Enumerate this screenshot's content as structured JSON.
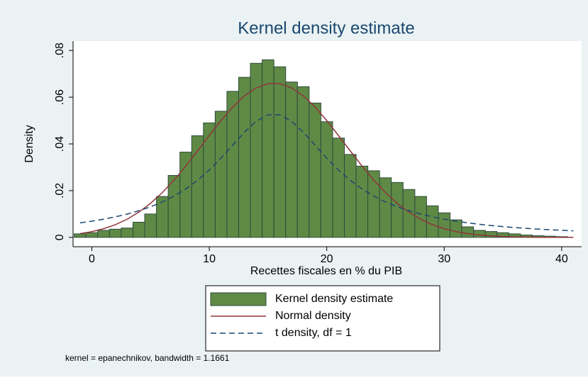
{
  "chart_data": {
    "type": "histogram",
    "title": "Kernel density estimate",
    "xlabel": "Recettes fiscales en % du PIB",
    "ylabel": "Density",
    "note": "kernel = epanechnikov, bandwidth = 1.1661",
    "bins": [
      -1.5,
      -0.5,
      0.5,
      1.5,
      2.5,
      3.5,
      4.5,
      5.5,
      6.5,
      7.5,
      8.5,
      9.5,
      10.5,
      11.5,
      12.5,
      13.5,
      14.5,
      15.5,
      16.5,
      17.5,
      18.5,
      19.5,
      20.5,
      21.5,
      22.5,
      23.5,
      24.5,
      25.5,
      26.5,
      27.5,
      28.5,
      29.5,
      30.5,
      31.5,
      32.5,
      33.5,
      34.5,
      35.5,
      36.5,
      37.5,
      38.5,
      39.5,
      40.5
    ],
    "series": [
      {
        "name": "Kernel density estimate",
        "color": "#5f8a46",
        "edge": "#2f4a3a",
        "values": [
          0.0015,
          0.002,
          0.003,
          0.0035,
          0.004,
          0.0065,
          0.01,
          0.0175,
          0.0265,
          0.0365,
          0.0435,
          0.049,
          0.054,
          0.0625,
          0.0685,
          0.0745,
          0.076,
          0.073,
          0.0665,
          0.0645,
          0.0575,
          0.0495,
          0.0425,
          0.0355,
          0.0305,
          0.0285,
          0.0255,
          0.0235,
          0.0205,
          0.0175,
          0.0135,
          0.0105,
          0.0075,
          0.0045,
          0.003,
          0.0025,
          0.002,
          0.0015,
          0.001,
          0.0007,
          0.0005,
          0.0003
        ]
      }
    ],
    "lines": [
      {
        "name": "Normal density",
        "color": "#90353b",
        "style": "solid",
        "x": [
          -1,
          0,
          1,
          2,
          3,
          4,
          5,
          6,
          7,
          8,
          9,
          10,
          11,
          12,
          13,
          14,
          15,
          16,
          17,
          18,
          19,
          20,
          21,
          22,
          23,
          24,
          25,
          26,
          27,
          28,
          29,
          30,
          31,
          32,
          33,
          34,
          35,
          36,
          37,
          38,
          39,
          40,
          41
        ],
        "values": [
          0.0016,
          0.00246,
          0.0037,
          0.00543,
          0.00776,
          0.01078,
          0.01458,
          0.01917,
          0.02453,
          0.03054,
          0.037,
          0.04361,
          0.05001,
          0.0558,
          0.0606,
          0.064,
          0.06578,
          0.06578,
          0.064,
          0.0606,
          0.0558,
          0.05001,
          0.04361,
          0.037,
          0.03054,
          0.02453,
          0.01917,
          0.01458,
          0.01078,
          0.00776,
          0.00543,
          0.0037,
          0.00246,
          0.0016,
          0.00099,
          0.00061,
          0.00036,
          0.00021,
          0.00012,
          6e-05,
          3e-05,
          2e-05,
          1e-05
        ]
      },
      {
        "name": "t density, df = 1",
        "color": "#1a476f",
        "style": "dashed",
        "x": [
          -1,
          0,
          1,
          2,
          3,
          4,
          5,
          6,
          7,
          8,
          9,
          10,
          11,
          12,
          13,
          14,
          15,
          16,
          17,
          18,
          19,
          20,
          21,
          22,
          23,
          24,
          25,
          26,
          27,
          28,
          29,
          30,
          31,
          32,
          33,
          34,
          35,
          36,
          37,
          38,
          39,
          40,
          41
        ],
        "values": [
          0.00622,
          0.00694,
          0.00779,
          0.00878,
          0.00997,
          0.01139,
          0.0131,
          0.01516,
          0.01768,
          0.02073,
          0.02442,
          0.02882,
          0.03391,
          0.03949,
          0.04505,
          0.04972,
          0.05244,
          0.05244,
          0.04972,
          0.04505,
          0.03949,
          0.03391,
          0.02882,
          0.02442,
          0.02073,
          0.01768,
          0.01516,
          0.0131,
          0.01139,
          0.00997,
          0.00878,
          0.00779,
          0.00694,
          0.00622,
          0.0056,
          0.00507,
          0.00461,
          0.0042,
          0.00385,
          0.00354,
          0.00326,
          0.00302,
          0.0028
        ]
      }
    ],
    "xlim": [
      -1.6,
      41.7
    ],
    "ylim": [
      -0.004,
      0.084
    ],
    "xticks": [
      0,
      10,
      20,
      30,
      40
    ],
    "yticks": [
      0,
      {
        "value": 0.02,
        "label": ".02"
      },
      {
        "value": 0.04,
        "label": ".04"
      },
      {
        "value": 0.06,
        "label": ".06"
      },
      {
        "value": 0.08,
        "label": ".08"
      }
    ],
    "legend": "bottom"
  }
}
